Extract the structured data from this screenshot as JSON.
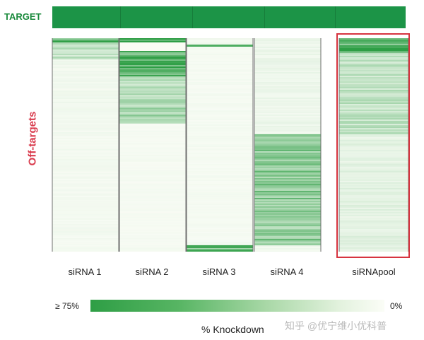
{
  "chart_data": {
    "type": "heatmap",
    "top_row_label": "TARGET",
    "y_label": "Off-targets",
    "columns": [
      "siRNA 1",
      "siRNA 2",
      "siRNA 3",
      "siRNA 4",
      "siRNApool"
    ],
    "highlighted_column": "siRNApool",
    "target_knockdown": [
      0.95,
      0.95,
      0.95,
      0.95,
      0.95
    ],
    "off_target_profiles": [
      {
        "column": "siRNA 1",
        "bands": [
          [
            0.0,
            0.02,
            0.8
          ],
          [
            0.02,
            0.1,
            0.28
          ],
          [
            0.1,
            0.4,
            0.05
          ],
          [
            0.4,
            1.0,
            0.04
          ]
        ]
      },
      {
        "column": "siRNA 2",
        "bands": [
          [
            0.0,
            0.02,
            0.9
          ],
          [
            0.06,
            0.18,
            0.85
          ],
          [
            0.18,
            0.32,
            0.35
          ],
          [
            0.32,
            0.4,
            0.45
          ],
          [
            0.4,
            1.0,
            0.03
          ]
        ]
      },
      {
        "column": "siRNA 3",
        "bands": [
          [
            0.0,
            0.03,
            0.05
          ],
          [
            0.03,
            0.04,
            0.75
          ],
          [
            0.04,
            0.97,
            0.03
          ],
          [
            0.97,
            1.0,
            0.75
          ]
        ]
      },
      {
        "column": "siRNA 4",
        "bands": [
          [
            0.0,
            0.45,
            0.07
          ],
          [
            0.45,
            0.97,
            0.55
          ],
          [
            0.97,
            1.0,
            0.05
          ]
        ]
      },
      {
        "column": "siRNApool",
        "bands": [
          [
            0.0,
            0.07,
            0.75
          ],
          [
            0.07,
            0.45,
            0.3
          ],
          [
            0.45,
            1.0,
            0.12
          ]
        ]
      }
    ],
    "colorbar": {
      "min_label": "0%",
      "max_label": "≥ 75%",
      "title": "% Knockdown",
      "min_color": "#fbfdf7",
      "max_color": "#2e9e45"
    }
  },
  "watermark": "知乎 @优宁维小优科普"
}
